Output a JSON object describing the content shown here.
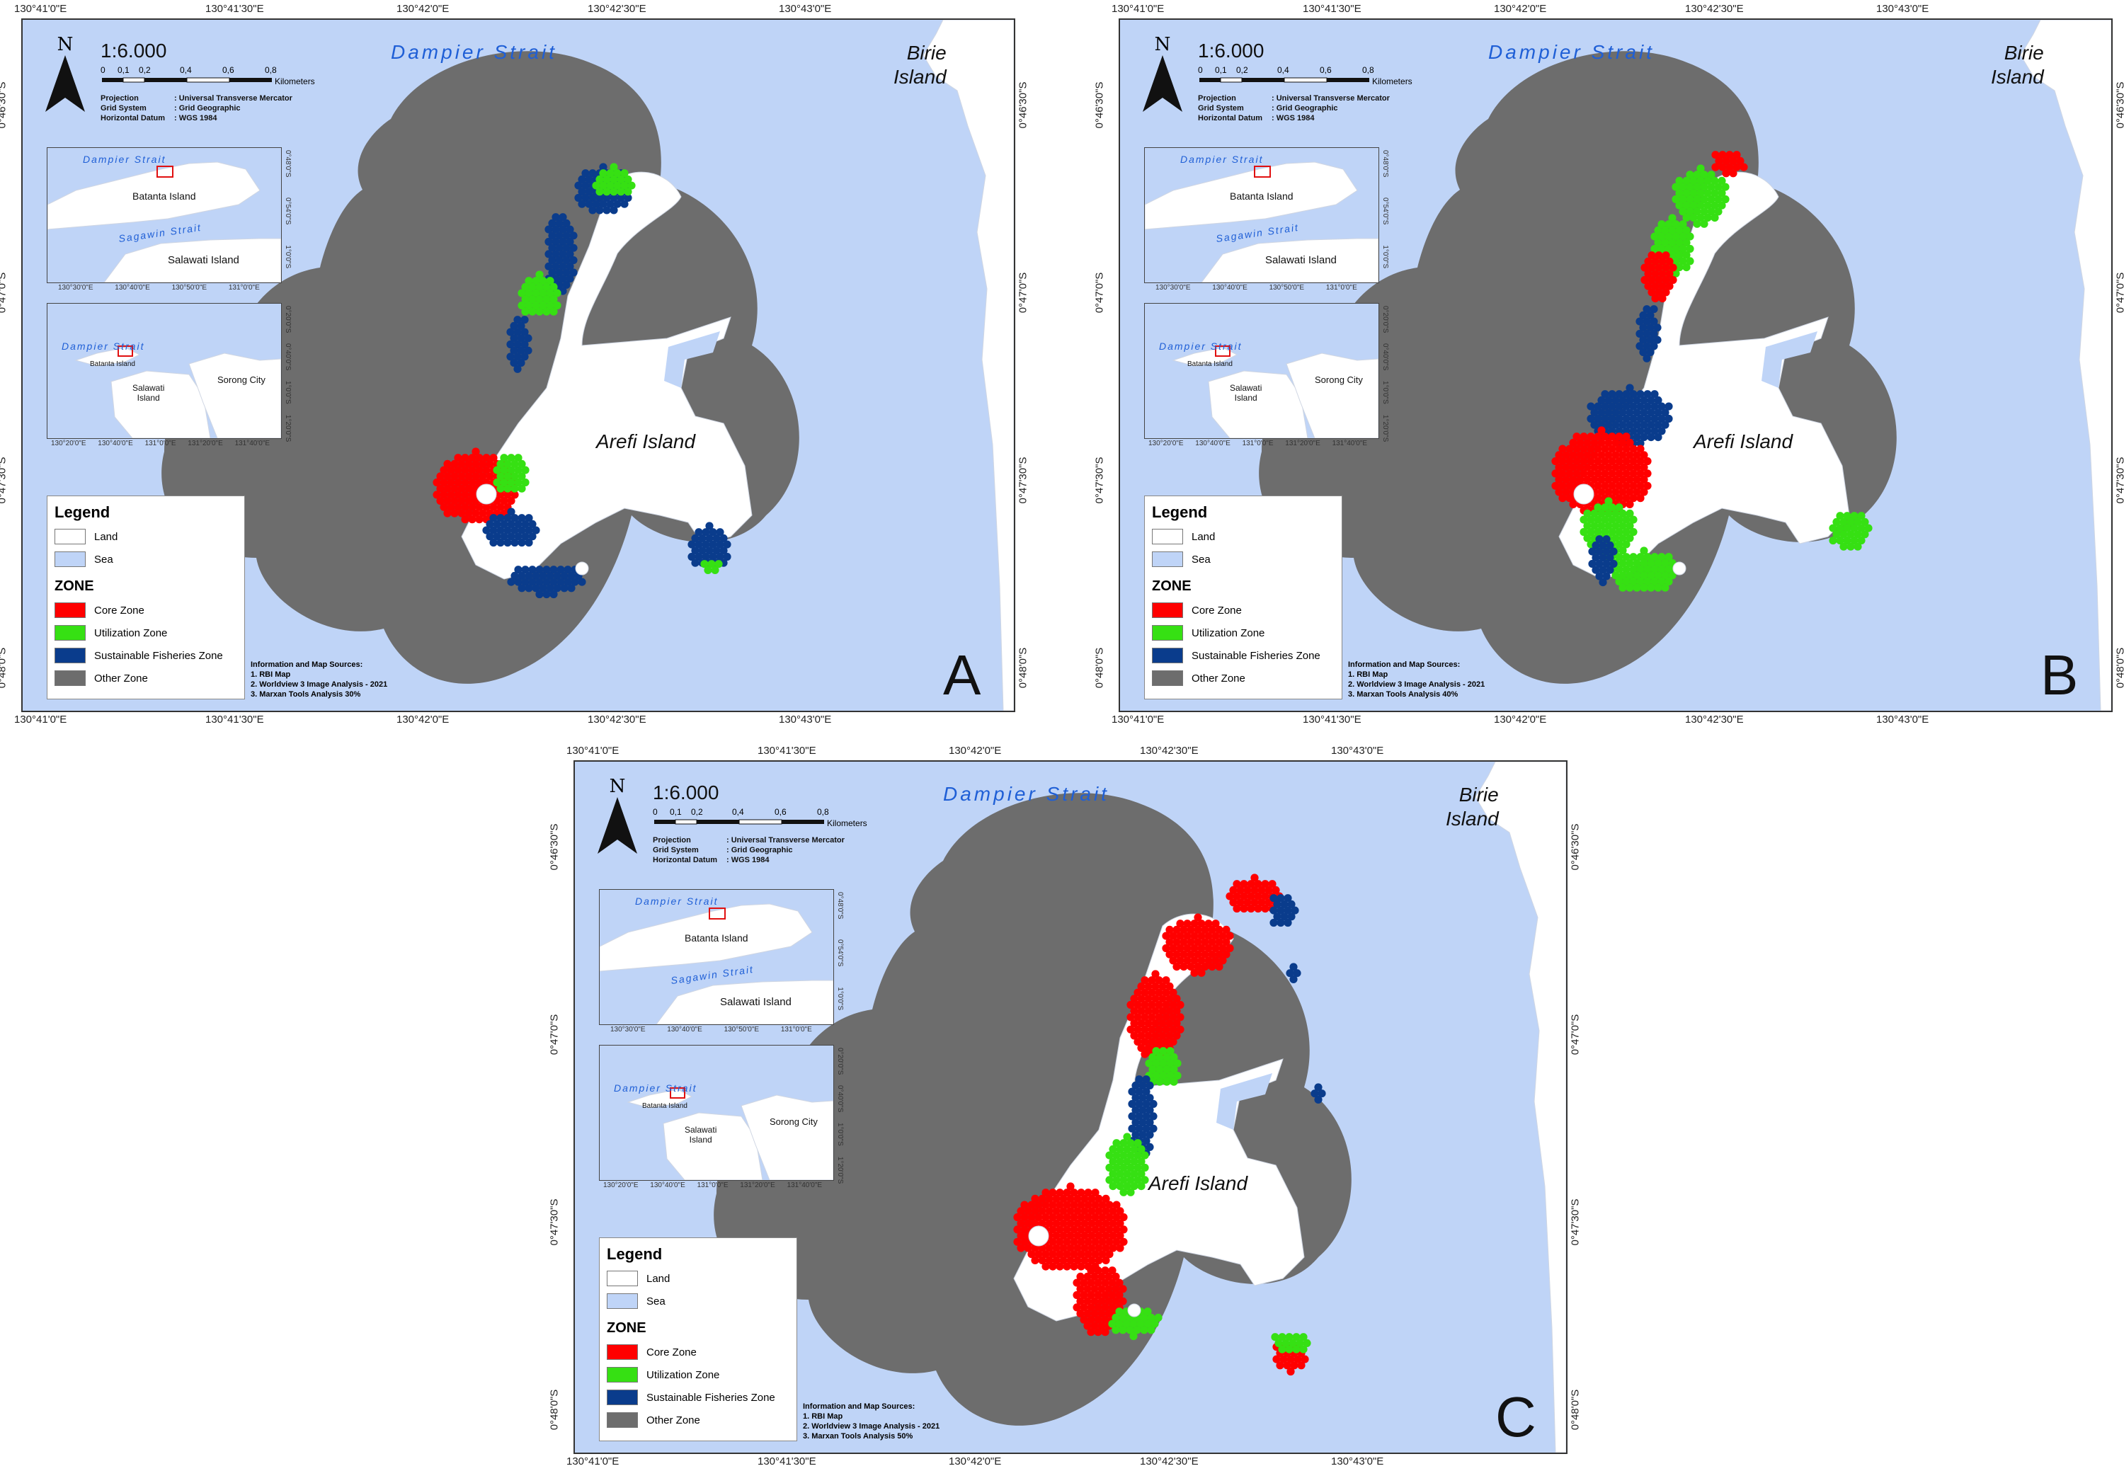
{
  "colors": {
    "sea": "#bfd4f7",
    "land": "#ffffff",
    "core": "#ff0000",
    "utilization": "#36e013",
    "fisheries": "#0a3c8c",
    "other": "#6d6d6d"
  },
  "map_text": {
    "strait": "Dampier Strait",
    "birie_line1": "Birie",
    "birie_line2": "Island",
    "arefi": "Arefi Island",
    "north": "N",
    "scale_ratio": "1:6.000",
    "scale_ticks": [
      "0",
      "0,1",
      "0,2",
      "0,4",
      "0,6",
      "0,8"
    ],
    "scale_unit": "Kilometers",
    "projection_key": "Projection",
    "projection_val": ": Universal Transverse Mercator",
    "grid_key": "Grid System",
    "grid_val": ": Grid Geographic",
    "datum_key": "Horizontal Datum",
    "datum_val": ": WGS 1984"
  },
  "coords": {
    "top": [
      "130°41'0\"E",
      "130°41'30\"E",
      "130°42'0\"E",
      "130°42'30\"E",
      "130°43'0\"E"
    ],
    "left": [
      "0°46'30\"S",
      "0°47'0\"S",
      "0°47'30\"S",
      "0°48'0\"S"
    ]
  },
  "inset1": {
    "strait": "Dampier Strait",
    "batanta": "Batanta Island",
    "sagawin": "Sagawin Strait",
    "salawati": "Salawati Island",
    "xticks": [
      "130°30'0\"E",
      "130°40'0\"E",
      "130°50'0\"E",
      "131°0'0\"E"
    ],
    "yticks": [
      "0°48'0\"S",
      "0°54'0\"S",
      "1°0'0\"S"
    ]
  },
  "inset2": {
    "strait": "Dampier Strait",
    "batanta": "Batanta Island",
    "salawati_line1": "Salawati",
    "salawati_line2": "Island",
    "sorong": "Sorong City",
    "xticks": [
      "130°20'0\"E",
      "130°40'0\"E",
      "131°0'0\"E",
      "131°20'0\"E",
      "131°40'0\"E"
    ],
    "yticks": [
      "0°20'0\"S",
      "0°40'0\"S",
      "1°0'0\"S",
      "1°20'0\"S"
    ]
  },
  "legend": {
    "title": "Legend",
    "land": "Land",
    "sea": "Sea",
    "zone_title": "ZONE",
    "core": "Core Zone",
    "utilization": "Utilization Zone",
    "fisheries": "Sustainable Fisheries Zone",
    "other": "Other Zone"
  },
  "panels": [
    {
      "letter": "A",
      "sources_title": "Information and Map Sources:",
      "sources": [
        "1. RBI Map",
        "2. Worldview 3 Image Analysis - 2021",
        "3. Marxan Tools Analysis 30%"
      ]
    },
    {
      "letter": "B",
      "sources_title": "Information and Map Sources:",
      "sources": [
        "1. RBI Map",
        "2. Worldview 3 Image Analysis - 2021",
        "3. Marxan Tools Analysis 40%"
      ]
    },
    {
      "letter": "C",
      "sources_title": "Information and Map Sources:",
      "sources": [
        "1. RBI Map",
        "2. Worldview 3 Image Analysis - 2021",
        "3. Marxan Tools Analysis 50%"
      ]
    }
  ]
}
